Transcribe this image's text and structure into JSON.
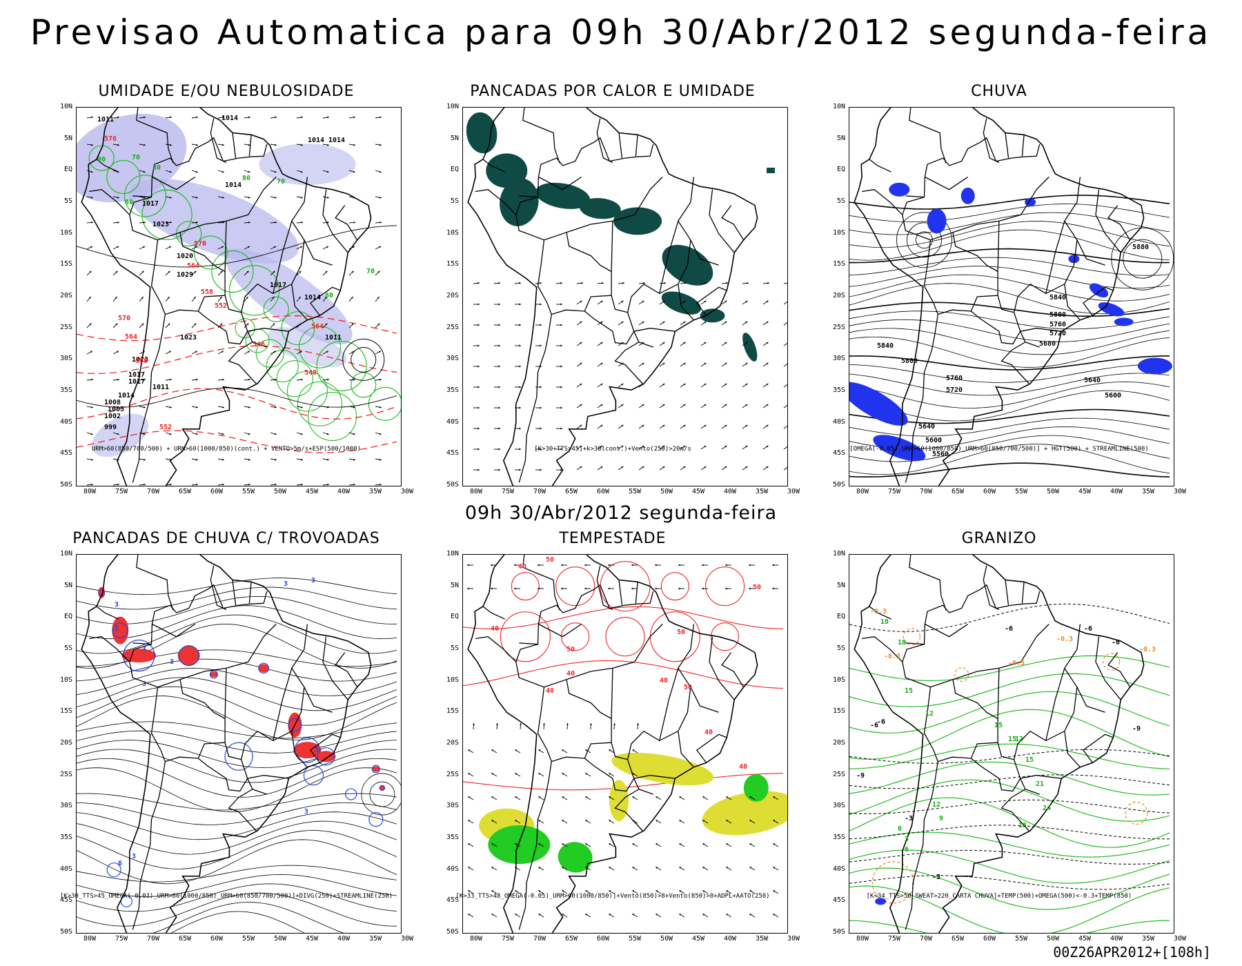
{
  "title": "Previsao Automatica para 09h 30/Abr/2012 segunda-feira",
  "subtitle": "09h 30/Abr/2012 segunda-feira",
  "footer": "00Z26APR2012+[108h]",
  "lat_ticks": [
    "10N",
    "5N",
    "EQ",
    "5S",
    "10S",
    "15S",
    "20S",
    "25S",
    "30S",
    "35S",
    "40S",
    "45S",
    "50S"
  ],
  "lon_ticks": [
    "80W",
    "75W",
    "70W",
    "65W",
    "60W",
    "55W",
    "50W",
    "45W",
    "40W",
    "35W",
    "30W"
  ],
  "colors": {
    "humidity_shade": "#b8b8ee",
    "contour_green": "#22bb22",
    "contour_red": "#ee2222",
    "rain_blue": "#2233ee",
    "storm_red": "#ee3333",
    "storm_blue": "#2244dd",
    "heat_teal": "#0f4a44",
    "tempest_yellow": "#dddd33",
    "tempest_green": "#22cc22",
    "hail_orange": "#ee8822"
  },
  "panels": [
    {
      "title": "UMIDADE E/OU NEBULOSIDADE",
      "legend": "URM>60(850/700/500) + URM>60(1000/850)(cont.) + VENTO>5m/s+ESP(500/1000)",
      "labels": [
        "1011",
        "1014",
        "1014",
        "1014",
        "1014",
        "1017",
        "1023",
        "1020",
        "1029",
        "1017",
        "1014",
        "1011",
        "1023",
        "1023",
        "1017",
        "1017",
        "1014",
        "1008",
        "1005",
        "1002",
        "999",
        "1011",
        "576",
        "570",
        "564",
        "558",
        "552",
        "570",
        "564",
        "546",
        "540",
        "552",
        "564",
        "558",
        "70",
        "80",
        "90",
        "80",
        "70",
        "80",
        "80",
        "70"
      ]
    },
    {
      "title": "PANCADAS POR CALOR E UMIDADE",
      "legend": "[K>30+TTS>45]+k>30(cont.)+Vento(250)>20m/s",
      "labels": []
    },
    {
      "title": "CHUVA",
      "legend": "[OMEGA(-0.05)_URM>60(1000/850)_URM>60(850/700/500)] + HGT(500) + STREAMLINE(500)",
      "labels": [
        "5880",
        "5840",
        "5800",
        "5760",
        "5720",
        "5680",
        "5840",
        "5800",
        "5760",
        "5720",
        "5640",
        "5600",
        "5640",
        "5600",
        "5560"
      ]
    },
    {
      "title": "PANCADAS DE CHUVA C/ TROVOADAS",
      "legend": "[K>30_TTS>45_OMEGA(-0.03)_URM>60(1000/850)_URM>60(850/700/500)]+DIVG(250)+STREAMLINE(250)",
      "labels": [
        "3",
        "3",
        "3",
        "3",
        "3",
        "3",
        "3",
        "3",
        "3",
        "3",
        "6"
      ]
    },
    {
      "title": "TEMPESTADE",
      "legend": "[K>33_TTS>48_OMEGA(-0.05)_URM>60(1000/850)]+Vento(850)>8+Vento(850)>8+ADPL+AATO(250)",
      "labels": [
        "50",
        "40",
        "50",
        "40",
        "50",
        "40",
        "40",
        "50",
        "40",
        "50",
        "40",
        "40"
      ]
    },
    {
      "title": "GRANIZO",
      "legend": "[K<34_TTS>50_SWEAT>220_CARTA CHUVA]+TEMP(500)+OMEGA(500)<-0.3+TEMP(850)",
      "labels": [
        "18",
        "18",
        "-0.3",
        "-0.3",
        "-6",
        "-6",
        "-6",
        "15",
        "12",
        "-6",
        "15",
        "12",
        "-9",
        "-9",
        "15",
        "18",
        "21",
        "24",
        "-3",
        "0",
        "3",
        "6",
        "9",
        "12",
        "15",
        "-0.3",
        "-0.3",
        "-0.3",
        "-6",
        "-3"
      ]
    }
  ]
}
